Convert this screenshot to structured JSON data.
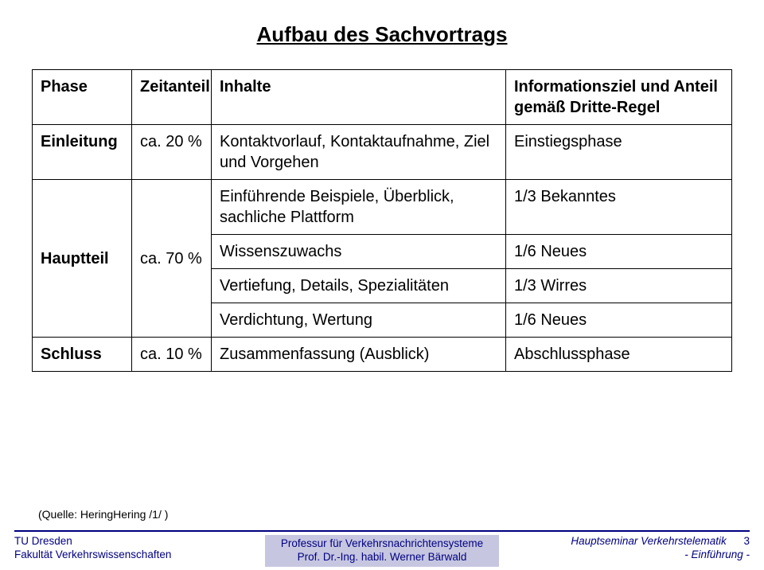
{
  "title": "Aufbau des Sachvortrags",
  "headers": {
    "phase": "Phase",
    "zeitanteil": "Zeitanteil",
    "inhalte": "Inhalte",
    "info": "Informationsziel und Anteil gemäß Dritte-Regel"
  },
  "rows": {
    "einleitung": {
      "phase": "Einleitung",
      "zeit": "ca. 20 %",
      "inhalte": "Kontaktvorlauf, Kontaktaufnahme, Ziel und Vorgehen",
      "info": "Einstiegsphase"
    },
    "haupt1": {
      "inhalte": "Einführende Beispiele, Überblick, sachliche Plattform",
      "info": "1/3 Bekanntes"
    },
    "haupt2": {
      "phase": "Hauptteil",
      "zeit": "ca. 70 %",
      "inhalte": "Wissenszuwachs",
      "info": "1/6 Neues"
    },
    "haupt3": {
      "inhalte": "Vertiefung, Details, Spezialitäten",
      "info": "1/3 Wirres"
    },
    "haupt4": {
      "inhalte": "Verdichtung, Wertung",
      "info": "1/6 Neues"
    },
    "schluss": {
      "phase": "Schluss",
      "zeit": "ca. 10 %",
      "inhalte": "Zusammenfassung (Ausblick)",
      "info": "Abschlussphase"
    }
  },
  "source": "(Quelle: HeringHering /1/   )",
  "footer": {
    "left1": "TU Dresden",
    "left2": "Fakultät Verkehrswissenschaften",
    "center1": "Professur für  Verkehrsnachrichtensysteme",
    "center2": "Prof. Dr.-Ing. habil. Werner Bärwald",
    "right1": "Hauptseminar Verkehrstelematik",
    "right2": "- Einführung -",
    "page": "3"
  },
  "colors": {
    "footer_rule": "#000080",
    "footer_text": "#000080",
    "center_box_bg": "#c6c6e1"
  }
}
